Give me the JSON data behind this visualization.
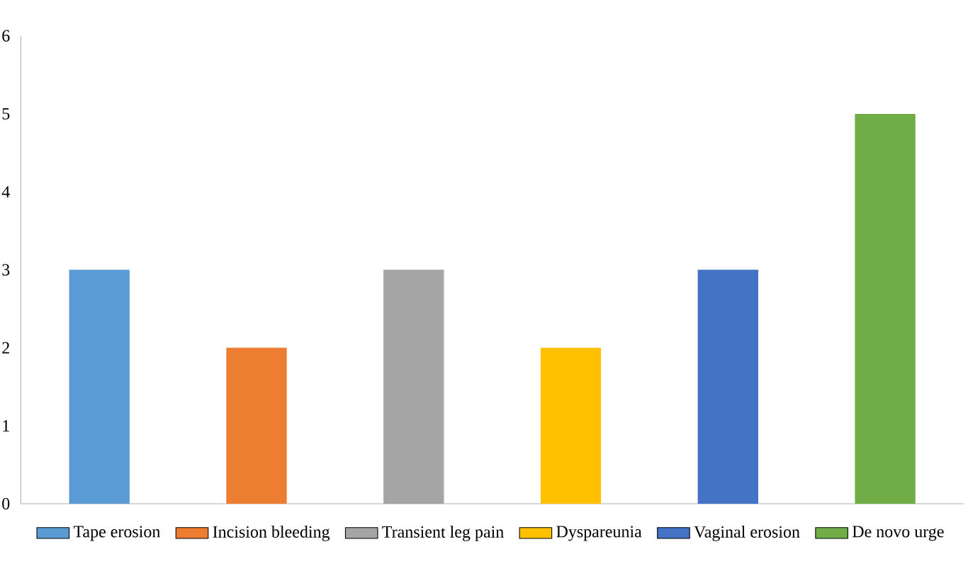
{
  "chart_data": {
    "type": "bar",
    "categories": [
      null,
      null,
      null,
      null,
      null,
      null
    ],
    "series": [
      {
        "name": "Tape erosion",
        "color": "#5b9bd5",
        "values": [
          3,
          null,
          null,
          null,
          null,
          null
        ]
      },
      {
        "name": "Incision bleeding",
        "color": "#ed7d31",
        "values": [
          null,
          2,
          null,
          null,
          null,
          null
        ]
      },
      {
        "name": "Transient leg pain",
        "color": "#a5a5a5",
        "values": [
          null,
          null,
          3,
          null,
          null,
          null
        ]
      },
      {
        "name": "Dyspareunia",
        "color": "#ffc000",
        "values": [
          null,
          null,
          null,
          2,
          null,
          null
        ]
      },
      {
        "name": "Vaginal erosion",
        "color": "#4472c4",
        "values": [
          null,
          null,
          null,
          null,
          3,
          null
        ]
      },
      {
        "name": "De novo urge",
        "color": "#70ad47",
        "values": [
          null,
          null,
          null,
          null,
          null,
          5
        ]
      }
    ],
    "ylim": [
      0,
      6
    ],
    "yticks": [
      0,
      1,
      2,
      3,
      4,
      5,
      6
    ],
    "grid": false,
    "legend": "bottom"
  }
}
